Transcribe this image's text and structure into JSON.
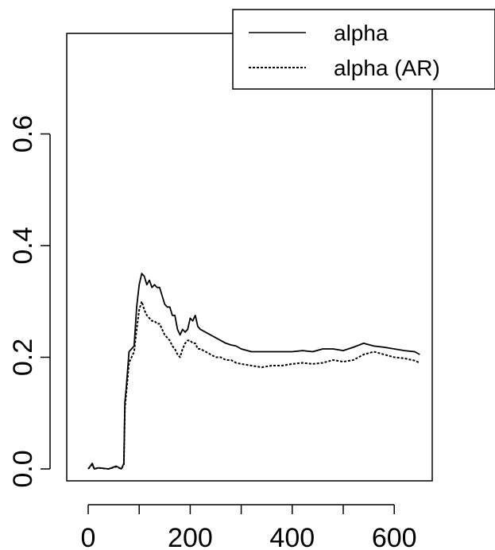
{
  "chart_data": {
    "type": "line",
    "title": "",
    "xlabel": "",
    "ylabel": "",
    "xlim": [
      -20,
      670
    ],
    "ylim": [
      -0.02,
      0.75
    ],
    "x_ticks": [
      0,
      100,
      200,
      300,
      400,
      500,
      600
    ],
    "x_tick_labels": [
      "0",
      "",
      "200",
      "",
      "400",
      "",
      "600"
    ],
    "y_ticks": [
      0.0,
      0.2,
      0.4,
      0.6
    ],
    "y_tick_labels": [
      "0.0",
      "0.2",
      "0.4",
      "0.6"
    ],
    "legend_position": "top-right",
    "series": [
      {
        "name": "alpha",
        "style": "solid",
        "color": "#000000",
        "x": [
          0,
          8,
          12,
          20,
          40,
          55,
          65,
          70,
          72,
          75,
          80,
          85,
          90,
          95,
          100,
          105,
          110,
          115,
          120,
          125,
          130,
          135,
          140,
          145,
          150,
          155,
          160,
          165,
          170,
          175,
          180,
          185,
          190,
          195,
          200,
          205,
          210,
          215,
          220,
          230,
          240,
          250,
          260,
          270,
          280,
          290,
          300,
          320,
          340,
          360,
          380,
          400,
          420,
          440,
          460,
          480,
          500,
          520,
          540,
          560,
          580,
          600,
          620,
          640,
          650
        ],
        "values": [
          0.0,
          0.01,
          0.0,
          0.002,
          0.0,
          0.005,
          0.0,
          0.01,
          0.12,
          0.15,
          0.21,
          0.215,
          0.22,
          0.29,
          0.33,
          0.35,
          0.345,
          0.33,
          0.338,
          0.325,
          0.33,
          0.325,
          0.325,
          0.31,
          0.295,
          0.29,
          0.29,
          0.275,
          0.275,
          0.25,
          0.24,
          0.25,
          0.245,
          0.25,
          0.27,
          0.265,
          0.275,
          0.255,
          0.25,
          0.245,
          0.24,
          0.235,
          0.23,
          0.225,
          0.222,
          0.22,
          0.215,
          0.21,
          0.21,
          0.21,
          0.21,
          0.21,
          0.212,
          0.21,
          0.215,
          0.215,
          0.212,
          0.218,
          0.225,
          0.22,
          0.218,
          0.215,
          0.212,
          0.21,
          0.205
        ]
      },
      {
        "name": "alpha (AR)",
        "style": "dashed",
        "color": "#000000",
        "x": [
          0,
          8,
          12,
          20,
          40,
          55,
          65,
          70,
          72,
          75,
          80,
          85,
          90,
          95,
          100,
          105,
          110,
          115,
          120,
          125,
          130,
          135,
          140,
          145,
          150,
          155,
          160,
          165,
          170,
          175,
          180,
          185,
          190,
          195,
          200,
          205,
          210,
          215,
          220,
          230,
          240,
          250,
          260,
          270,
          280,
          290,
          300,
          320,
          340,
          360,
          380,
          400,
          420,
          440,
          460,
          480,
          500,
          520,
          540,
          560,
          580,
          600,
          620,
          640,
          650
        ],
        "values": [
          0.0,
          0.008,
          0.0,
          0.002,
          0.0,
          0.004,
          0.0,
          0.008,
          0.11,
          0.14,
          0.19,
          0.2,
          0.21,
          0.25,
          0.285,
          0.3,
          0.285,
          0.275,
          0.27,
          0.265,
          0.265,
          0.26,
          0.26,
          0.25,
          0.24,
          0.235,
          0.23,
          0.22,
          0.215,
          0.205,
          0.2,
          0.215,
          0.225,
          0.23,
          0.23,
          0.225,
          0.225,
          0.215,
          0.215,
          0.21,
          0.205,
          0.2,
          0.2,
          0.195,
          0.195,
          0.19,
          0.188,
          0.185,
          0.182,
          0.185,
          0.185,
          0.188,
          0.19,
          0.188,
          0.19,
          0.195,
          0.192,
          0.195,
          0.205,
          0.21,
          0.205,
          0.2,
          0.198,
          0.194,
          0.19
        ]
      }
    ]
  }
}
